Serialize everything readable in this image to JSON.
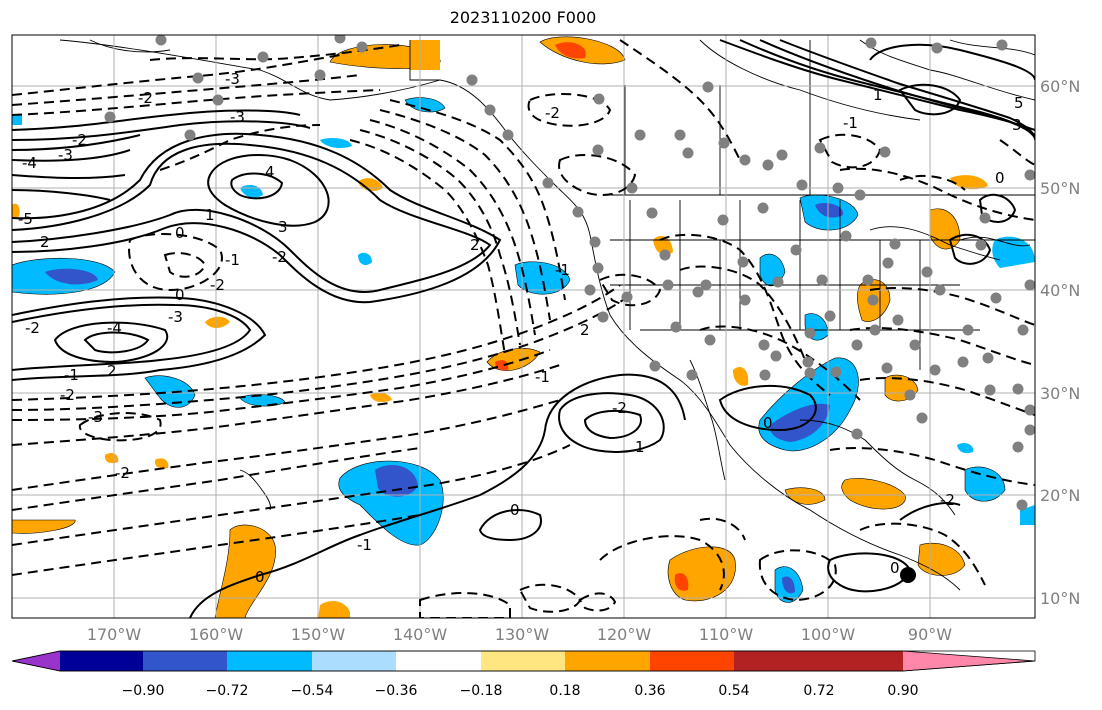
{
  "title": "2023110200 F000",
  "map": {
    "lon_ticks": [
      "170°W",
      "160°W",
      "150°W",
      "140°W",
      "130°W",
      "120°W",
      "110°W",
      "100°W",
      "90°W"
    ],
    "lat_ticks": [
      "60°N",
      "50°N",
      "40°N",
      "30°N",
      "20°N",
      "10°N"
    ],
    "gridlines": true,
    "colors": {
      "grid": "#b0b0b0",
      "contour": "#000000",
      "station": "#808080"
    }
  },
  "colorbar": {
    "labels": [
      "−0.90",
      "−0.72",
      "−0.54",
      "−0.36",
      "−0.18",
      "0.18",
      "0.36",
      "0.54",
      "0.72",
      "0.90"
    ],
    "colors": [
      "#9933cc",
      "#000099",
      "#3355cc",
      "#00bbff",
      "#aaddff",
      "#ffffff",
      "#ffe680",
      "#ffa500",
      "#ff4400",
      "#b22222",
      "#ff88aa"
    ]
  },
  "contour_labels": [
    "-3",
    "-2",
    "-3",
    "-2",
    "-3",
    "-4",
    "2",
    "-5",
    "-2",
    "4",
    "3",
    "2",
    "-1",
    "0",
    "-2",
    "1",
    "0",
    "-4",
    "-3",
    "-2",
    "2",
    "-1",
    "-2",
    "-3",
    "-2",
    "-1",
    "0",
    "-2",
    "2",
    "1",
    "0",
    "-1",
    "0",
    "-2",
    "-1",
    "5",
    "3",
    "0",
    "1",
    "-1",
    "0",
    "-2"
  ]
}
